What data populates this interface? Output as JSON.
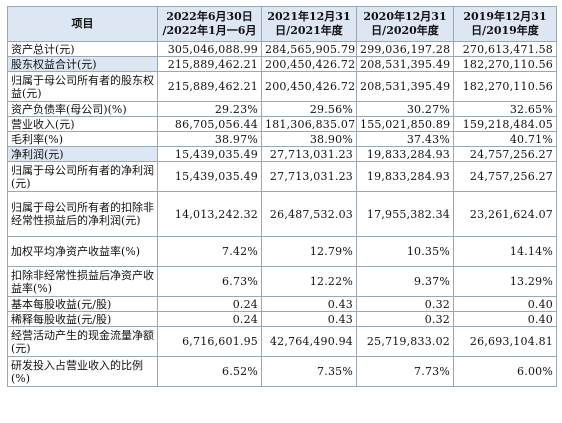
{
  "headers": [
    "项目",
    "2022年6月30日\n/2022年1月一6月",
    "2021年12月31\n日/2021年度",
    "2020年12月31\n日/2020年度",
    "2019年12月31\n日/2019年度"
  ],
  "rows": [
    {
      "label": "资产总计(元)",
      "values": [
        "305,046,088.99",
        "284,565,905.79",
        "299,036,197.28",
        "270,613,471.58"
      ],
      "size": "h1"
    },
    {
      "label": "股东权益合计(元)",
      "values": [
        "215,889,462.21",
        "200,450,426.72",
        "208,531,395.49",
        "182,270,110.56"
      ],
      "size": "h1"
    },
    {
      "label": "归属于母公司所有者的股东权益(元)",
      "values": [
        "215,889,462.21",
        "200,450,426.72",
        "208,531,395.49",
        "182,270,110.56"
      ],
      "size": "h2"
    },
    {
      "label": "资产负债率(母公司)(%)",
      "values": [
        "29.23%",
        "29.56%",
        "30.27%",
        "32.65%"
      ],
      "size": "h1"
    },
    {
      "label": "营业收入(元)",
      "values": [
        "86,705,056.44",
        "181,306,835.07",
        "155,021,850.89",
        "159,218,484.05"
      ],
      "size": "h1"
    },
    {
      "label": "毛利率(%)",
      "values": [
        "38.97%",
        "38.90%",
        "37.43%",
        "40.71%"
      ],
      "size": "h1"
    },
    {
      "label": "净利润(元)",
      "values": [
        "15,439,035.49",
        "27,713,031.23",
        "19,833,284.93",
        "24,757,256.27"
      ],
      "size": "h1"
    },
    {
      "label": "归属于母公司所有者的净利润(元)",
      "values": [
        "15,439,035.49",
        "27,713,031.23",
        "19,833,284.93",
        "24,757,256.27"
      ],
      "size": "h2"
    },
    {
      "label": "归属于母公司所有者的扣除非经常性损益后的净利润(元)",
      "values": [
        "14,013,242.32",
        "26,487,532.03",
        "17,955,382.34",
        "23,261,624.07"
      ],
      "size": "h3"
    },
    {
      "label": "加权平均净资产收益率(%)",
      "values": [
        "7.42%",
        "12.79%",
        "10.35%",
        "14.14%"
      ],
      "size": "h2"
    },
    {
      "label": "扣除非经常性损益后净资产收益率(%)",
      "values": [
        "6.73%",
        "12.22%",
        "9.37%",
        "13.29%"
      ],
      "size": "h2"
    },
    {
      "label": "基本每股收益(元/股)",
      "values": [
        "0.24",
        "0.43",
        "0.32",
        "0.40"
      ],
      "size": "h1"
    },
    {
      "label": "稀释每股收益(元/股)",
      "values": [
        "0.24",
        "0.43",
        "0.32",
        "0.40"
      ],
      "size": "h1"
    },
    {
      "label": "经营活动产生的现金流量净额(元)",
      "values": [
        "6,716,601.95",
        "42,764,490.94",
        "25,719,833.02",
        "26,693,104.81"
      ],
      "size": "h2"
    },
    {
      "label": "研发投入占营业收入的比例(%)",
      "values": [
        "6.52%",
        "7.35%",
        "7.73%",
        "6.00%"
      ],
      "size": "h2"
    }
  ],
  "colors": {
    "header_bg": "#dde7f3",
    "border": "#9aa7b6",
    "highlight_bg": "#dde7f3"
  }
}
